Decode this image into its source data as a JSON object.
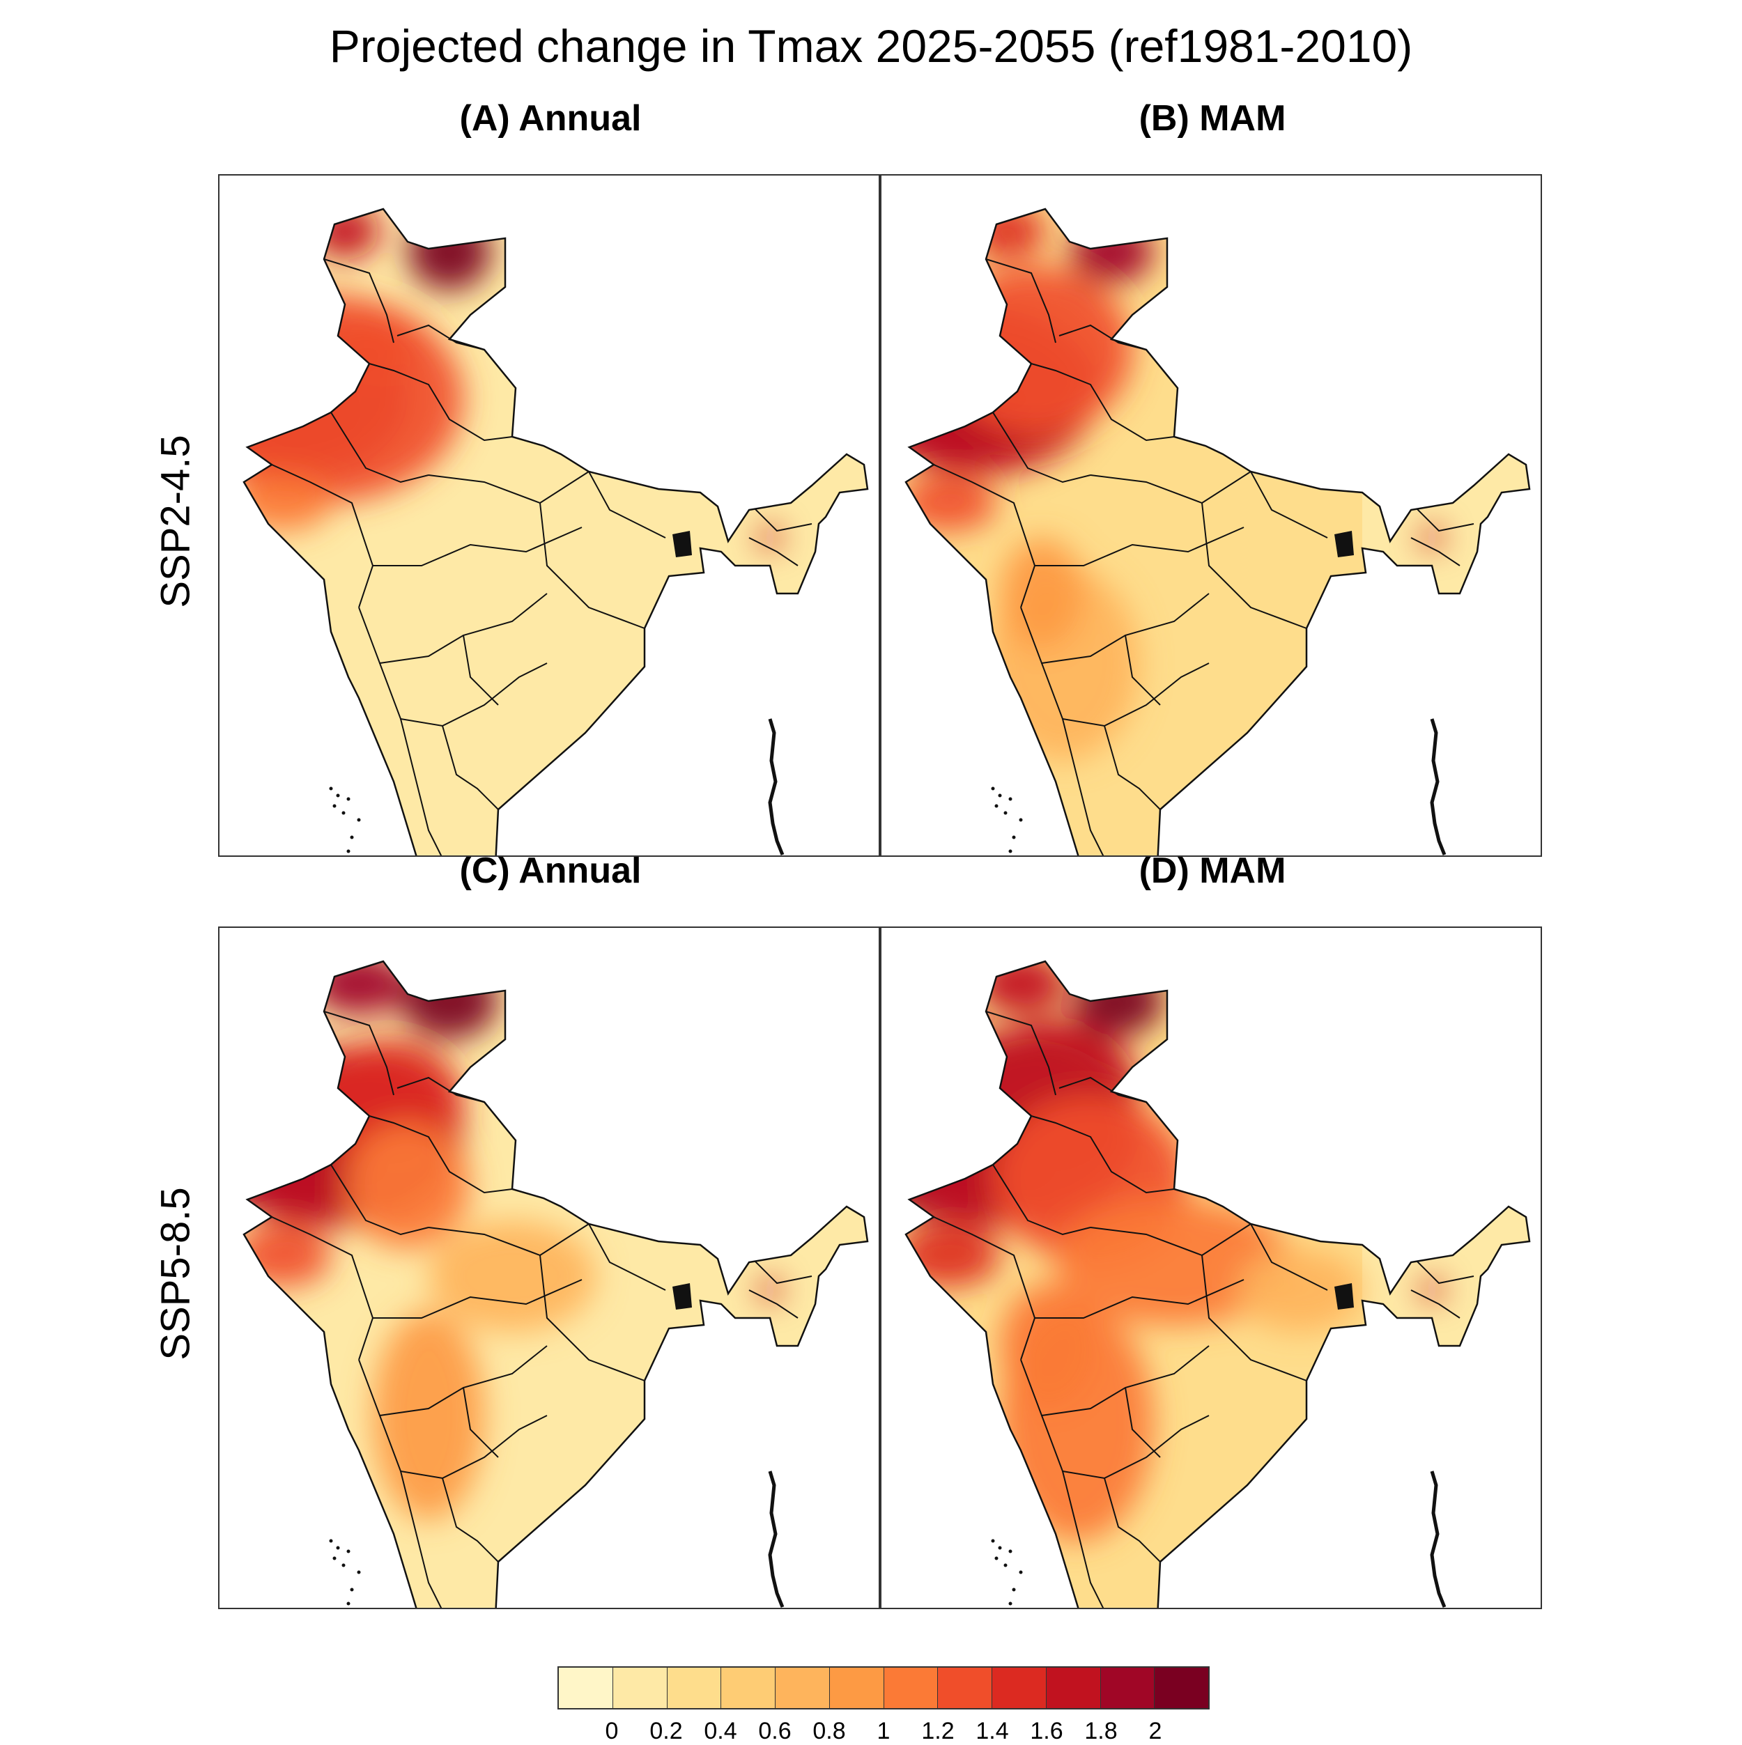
{
  "title": "Projected change in Tmax 2025-2055 (ref1981-2010)",
  "rows": [
    {
      "label": "SSP2-4.5"
    },
    {
      "label": "SSP5-8.5"
    }
  ],
  "panels": [
    {
      "id": "A",
      "title": "(A) Annual",
      "scenario": "SSP2-4.5",
      "season": "Annual"
    },
    {
      "id": "B",
      "title": "(B) MAM",
      "scenario": "SSP2-4.5",
      "season": "MAM"
    },
    {
      "id": "C",
      "title": "(C) Annual",
      "scenario": "SSP5-8.5",
      "season": "Annual"
    },
    {
      "id": "D",
      "title": "(D) MAM",
      "scenario": "SSP5-8.5",
      "season": "MAM"
    }
  ],
  "colorbar": {
    "ticks": [
      "0",
      "0.2",
      "0.4",
      "0.6",
      "0.8",
      "1",
      "1.2",
      "1.4",
      "1.6",
      "1.8",
      "2"
    ],
    "colors": [
      "#fff6c8",
      "#fee9a6",
      "#fedd8c",
      "#fecc74",
      "#feb45c",
      "#fd9a44",
      "#fb7a36",
      "#f04e2a",
      "#dc2a21",
      "#c1121f",
      "#a00626",
      "#7a0021"
    ]
  },
  "colors": {
    "border": "#111111",
    "land_low": "#fee9a6"
  }
}
